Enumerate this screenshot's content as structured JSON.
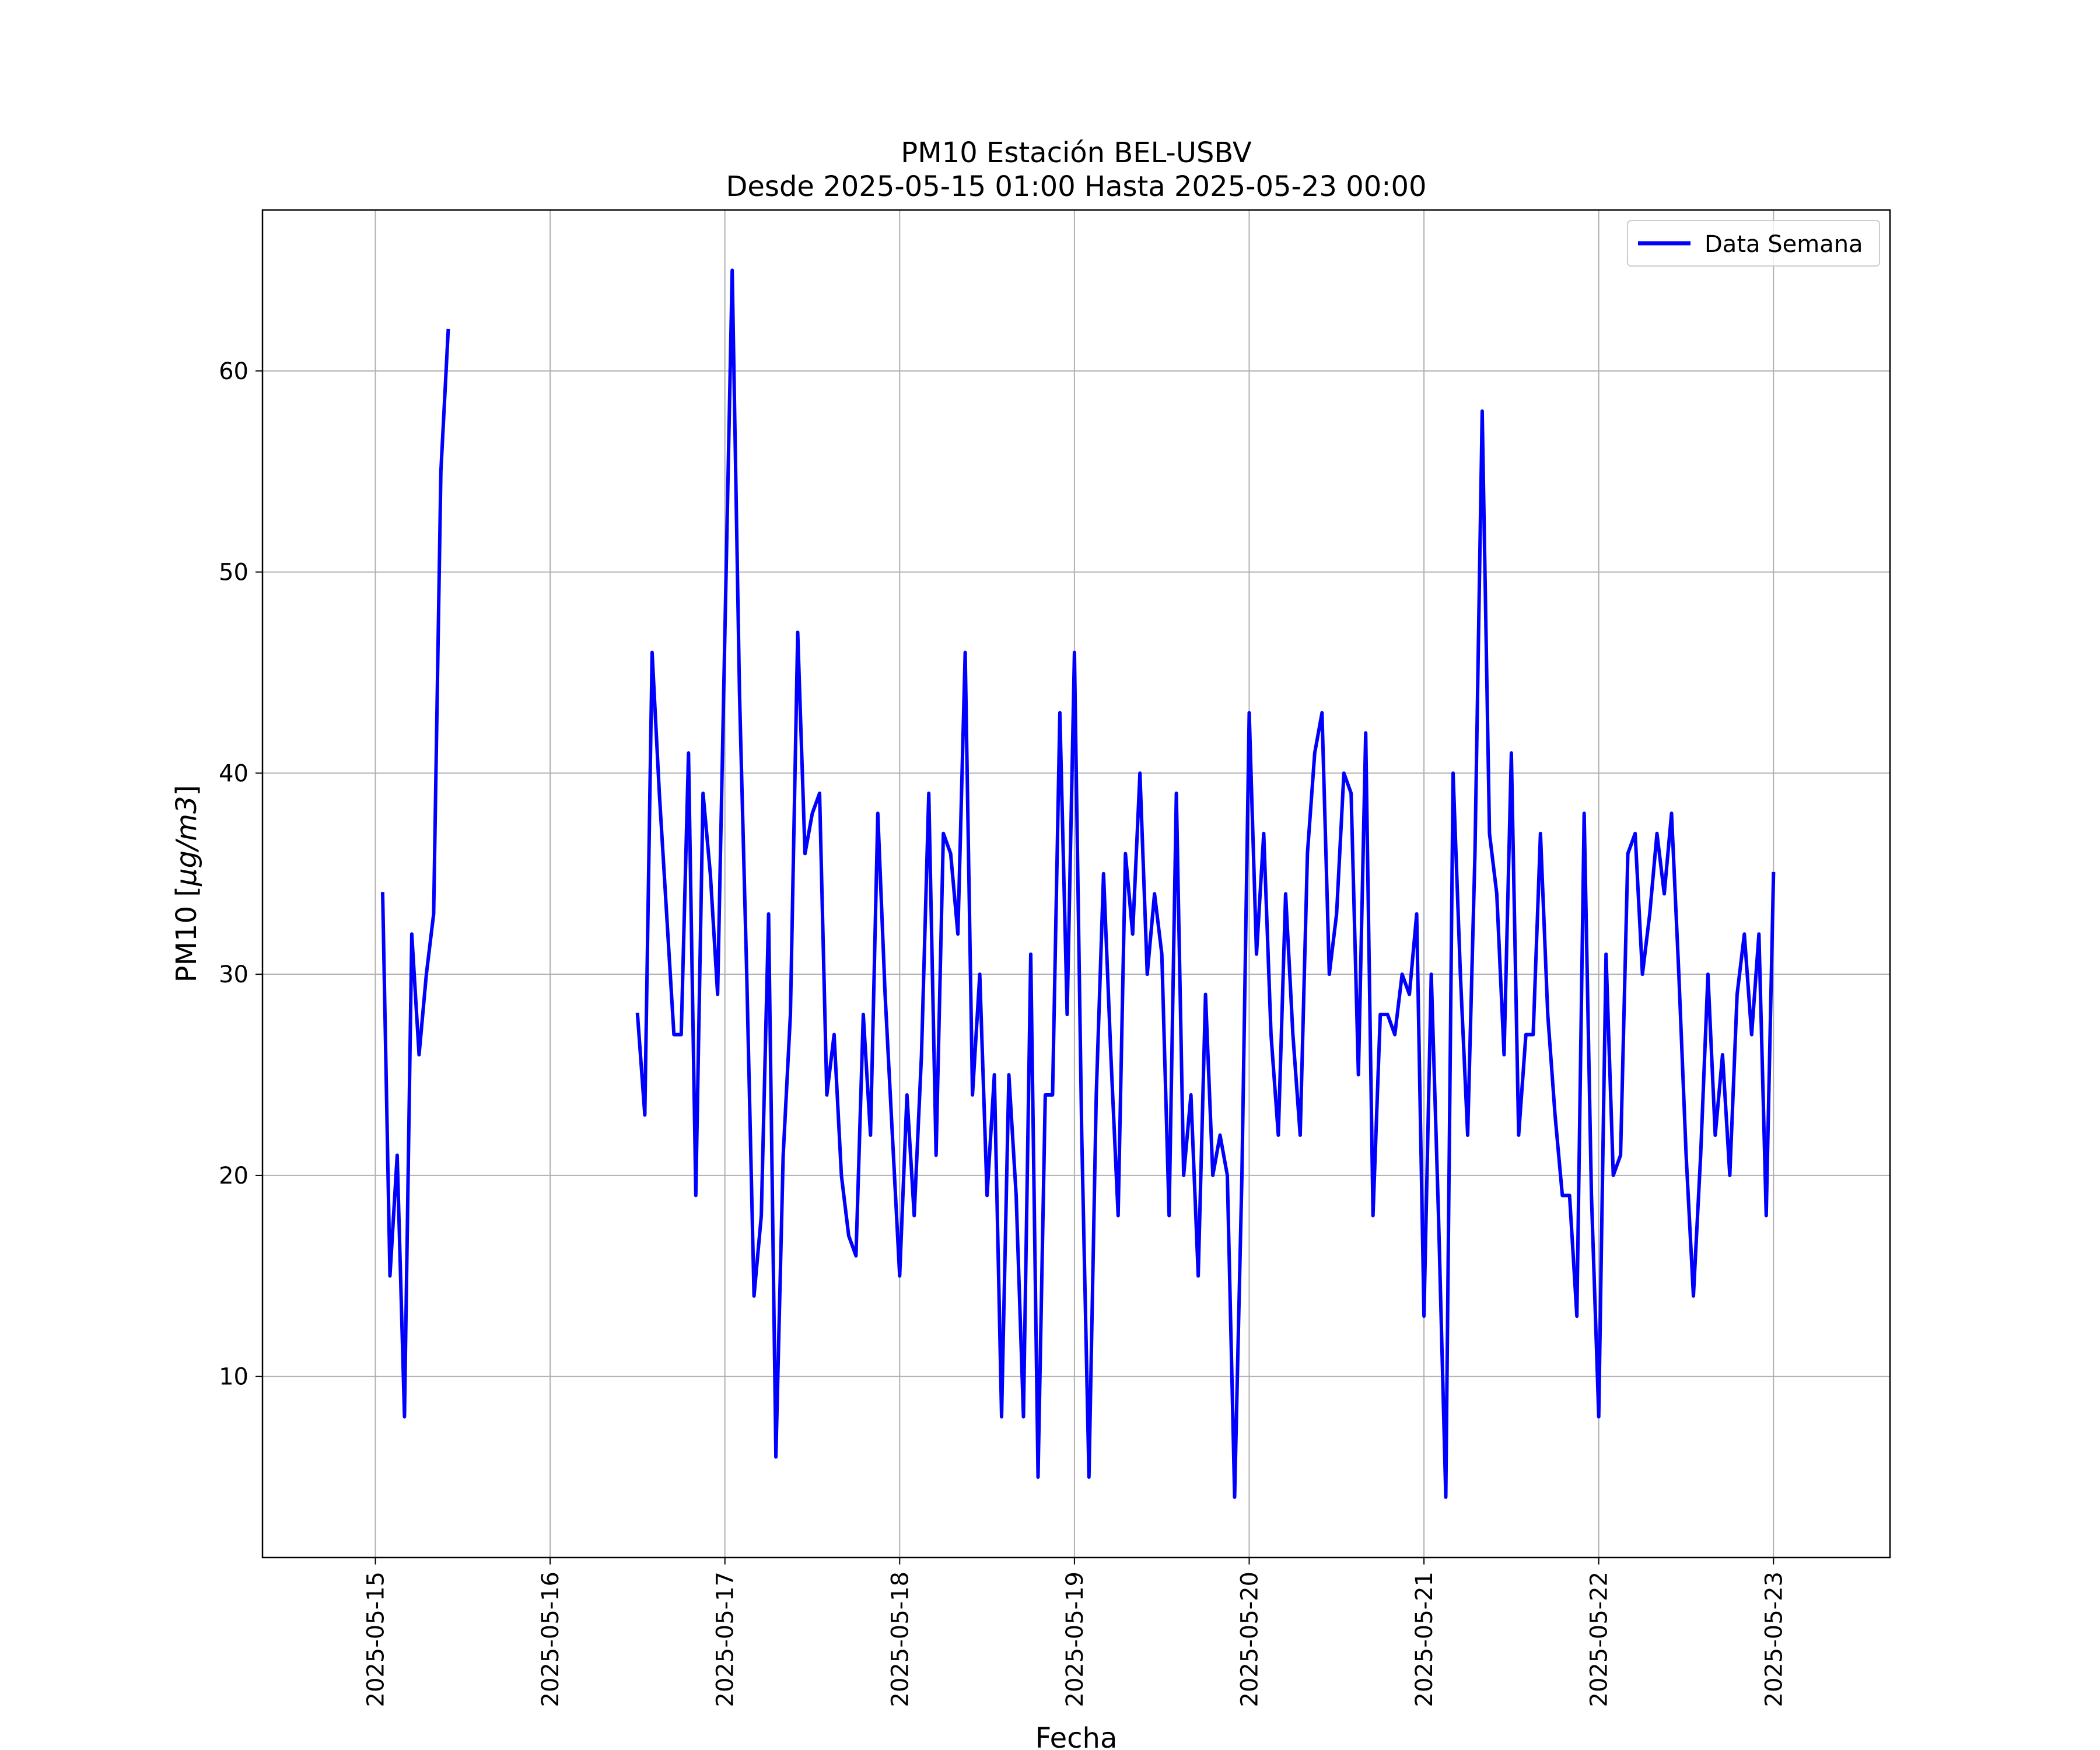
{
  "chart_data": {
    "type": "line",
    "title_line1": "PM10 Estación BEL-USBV",
    "title_line2": "Desde 2025-05-15 01:00 Hasta 2025-05-23 00:00",
    "xlabel": "Fecha",
    "ylabel_prefix": "PM10 [",
    "ylabel_unit": "µg/m3",
    "ylabel_suffix": "]",
    "xlim": [
      "2025-05-14 08:30",
      "2025-05-23 16:00"
    ],
    "ylim": [
      1,
      68
    ],
    "x_ticks": [
      "2025-05-15",
      "2025-05-16",
      "2025-05-17",
      "2025-05-18",
      "2025-05-19",
      "2025-05-20",
      "2025-05-21",
      "2025-05-22",
      "2025-05-23"
    ],
    "y_ticks": [
      10,
      20,
      30,
      40,
      50,
      60
    ],
    "grid": true,
    "legend_position": "top-right",
    "series_color": "#0000ff",
    "series": [
      {
        "name": "Data Semana",
        "start": "2025-05-15 01:00",
        "step_hours": 1,
        "values": [
          34,
          15,
          21,
          8,
          32,
          26,
          30,
          33,
          55,
          62,
          null,
          null,
          null,
          null,
          null,
          null,
          null,
          null,
          null,
          null,
          null,
          null,
          null,
          null,
          null,
          null,
          null,
          null,
          null,
          null,
          null,
          null,
          null,
          null,
          null,
          28,
          23,
          46,
          39,
          33,
          27,
          27,
          41,
          19,
          39,
          35,
          29,
          47,
          65,
          44,
          30,
          14,
          18,
          33,
          6,
          21,
          28,
          47,
          36,
          38,
          39,
          24,
          27,
          20,
          17,
          16,
          28,
          22,
          38,
          29,
          22,
          15,
          24,
          18,
          26,
          39,
          21,
          37,
          36,
          32,
          46,
          24,
          30,
          19,
          25,
          8,
          25,
          19,
          8,
          31,
          5,
          24,
          24,
          43,
          28,
          46,
          22,
          5,
          24,
          35,
          26,
          18,
          36,
          32,
          40,
          30,
          34,
          31,
          18,
          39,
          20,
          24,
          15,
          29,
          20,
          22,
          20,
          4,
          20,
          43,
          31,
          37,
          27,
          22,
          34,
          27,
          22,
          36,
          41,
          43,
          30,
          33,
          40,
          39,
          25,
          42,
          18,
          28,
          28,
          27,
          30,
          29,
          33,
          13,
          30,
          18,
          4,
          40,
          30,
          22,
          36,
          58,
          37,
          34,
          26,
          41,
          22,
          27,
          27,
          37,
          28,
          23,
          19,
          19,
          13,
          38,
          19,
          8,
          31,
          20,
          21,
          36,
          37,
          30,
          33,
          37,
          34,
          38,
          30,
          21,
          14,
          21,
          30,
          22,
          26,
          20,
          29,
          32,
          27,
          32,
          18,
          35
        ]
      }
    ]
  }
}
